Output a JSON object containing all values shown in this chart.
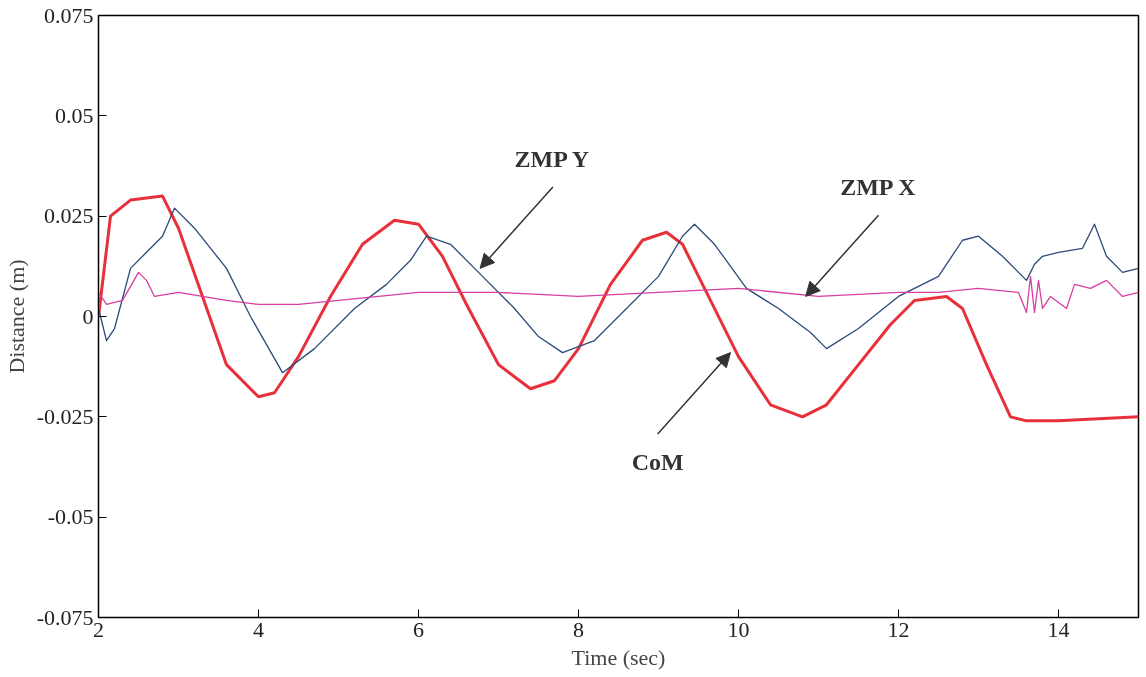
{
  "chart_data": {
    "type": "line",
    "xlabel": "Time (sec)",
    "ylabel": "Distance (m)",
    "xlim": [
      2,
      15
    ],
    "ylim": [
      -0.075,
      0.075
    ],
    "xticks": [
      2,
      4,
      6,
      8,
      10,
      12,
      14
    ],
    "yticks": [
      -0.075,
      -0.05,
      -0.025,
      0,
      0.025,
      0.05,
      0.075
    ],
    "grid": false,
    "marker": "none",
    "line_style": "solid",
    "series": [
      {
        "color": "#e8303a",
        "x": [
          2.0,
          2.15,
          2.4,
          2.8,
          3.0,
          3.3,
          3.6,
          4.0,
          4.2,
          4.5,
          4.9,
          5.3,
          5.7,
          6.0,
          6.3,
          6.6,
          7.0,
          7.4,
          7.7,
          8.0,
          8.4,
          8.8,
          9.1,
          9.3,
          9.6,
          10.0,
          10.4,
          10.8,
          11.1,
          11.5,
          11.9,
          12.2,
          12.6,
          12.8,
          13.1,
          13.4,
          13.6,
          14.0,
          15.0
        ],
        "values": [
          0,
          0.025,
          0.029,
          0.03,
          0.022,
          0.005,
          -0.012,
          -0.02,
          -0.019,
          -0.01,
          0.005,
          0.018,
          0.024,
          0.023,
          0.015,
          0.003,
          -0.012,
          -0.018,
          -0.016,
          -0.008,
          0.008,
          0.019,
          0.021,
          0.018,
          0.006,
          -0.01,
          -0.022,
          -0.025,
          -0.022,
          -0.012,
          -0.002,
          0.004,
          0.005,
          0.002,
          -0.012,
          -0.025,
          -0.026,
          -0.026,
          -0.025
        ]
      },
      {
        "color": "#2b4a7a",
        "x": [
          2.0,
          2.1,
          2.2,
          2.4,
          2.6,
          2.8,
          2.95,
          3.2,
          3.6,
          3.9,
          4.3,
          4.7,
          5.2,
          5.6,
          5.9,
          6.1,
          6.4,
          6.8,
          7.2,
          7.5,
          7.8,
          8.2,
          8.6,
          9.0,
          9.3,
          9.45,
          9.7,
          10.1,
          10.5,
          10.9,
          11.1,
          11.5,
          12.0,
          12.5,
          12.8,
          13.0,
          13.3,
          13.6,
          13.7,
          13.8,
          14.0,
          14.3,
          14.45,
          14.6,
          14.8,
          15.0
        ],
        "values": [
          0.002,
          -0.006,
          -0.003,
          0.012,
          0.016,
          0.02,
          0.027,
          0.022,
          0.012,
          0.0,
          -0.014,
          -0.008,
          0.002,
          0.008,
          0.014,
          0.02,
          0.018,
          0.01,
          0.002,
          -0.005,
          -0.009,
          -0.006,
          0.002,
          0.01,
          0.02,
          0.023,
          0.018,
          0.007,
          0.002,
          -0.004,
          -0.008,
          -0.003,
          0.005,
          0.01,
          0.019,
          0.02,
          0.015,
          0.009,
          0.013,
          0.015,
          0.016,
          0.017,
          0.023,
          0.015,
          0.011,
          0.012
        ]
      },
      {
        "color": "#d63fa0",
        "x": [
          2.0,
          2.1,
          2.3,
          2.5,
          2.6,
          2.7,
          3.0,
          3.3,
          3.6,
          4.0,
          4.5,
          5.0,
          5.5,
          6.0,
          7.0,
          8.0,
          9.0,
          10.0,
          11.0,
          12.0,
          12.5,
          13.0,
          13.5,
          13.6,
          13.65,
          13.7,
          13.75,
          13.8,
          13.9,
          14.1,
          14.2,
          14.4,
          14.6,
          14.8,
          15.0
        ],
        "values": [
          0.006,
          0.003,
          0.004,
          0.011,
          0.009,
          0.005,
          0.006,
          0.005,
          0.004,
          0.003,
          0.003,
          0.004,
          0.005,
          0.006,
          0.006,
          0.005,
          0.006,
          0.007,
          0.005,
          0.006,
          0.006,
          0.007,
          0.006,
          0.001,
          0.01,
          0.001,
          0.009,
          0.002,
          0.005,
          0.002,
          0.008,
          0.007,
          0.009,
          0.005,
          0.006
        ]
      }
    ],
    "annotations": [
      {
        "text": "ZMP Y",
        "x": 6.77,
        "y": 0.012
      },
      {
        "text": "ZMP X",
        "x": 10.84,
        "y": 0.005
      },
      {
        "text": "CoM",
        "x": 9.9,
        "y": -0.009
      }
    ]
  }
}
